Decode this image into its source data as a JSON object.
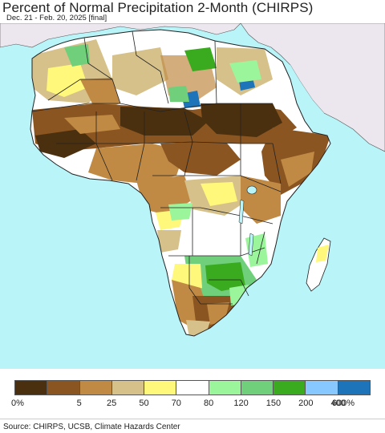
{
  "title": "Percent of Normal Precipitation 2-Month (CHIRPS)",
  "subtitle": "Dec. 21 - Feb. 20, 2025 [final]",
  "colors": {
    "ocean": "#b9f4f8",
    "non_africa_land": "#ece6ee",
    "normal": "#ffffff",
    "borders": "#222222"
  },
  "legend": {
    "colors": [
      "#4b300f",
      "#8a5520",
      "#c08a45",
      "#d6c18a",
      "#fff87a",
      "#ffffff",
      "#9bf59a",
      "#6fcf7a",
      "#3aaa1e",
      "#86c8ff",
      "#1e74b8"
    ],
    "labels": [
      "0%",
      "5",
      "25",
      "50",
      "70",
      "80",
      "120",
      "150",
      "200",
      "400",
      "600%"
    ]
  },
  "source": "Source: CHIRPS, UCSB, Climate Hazards Center"
}
